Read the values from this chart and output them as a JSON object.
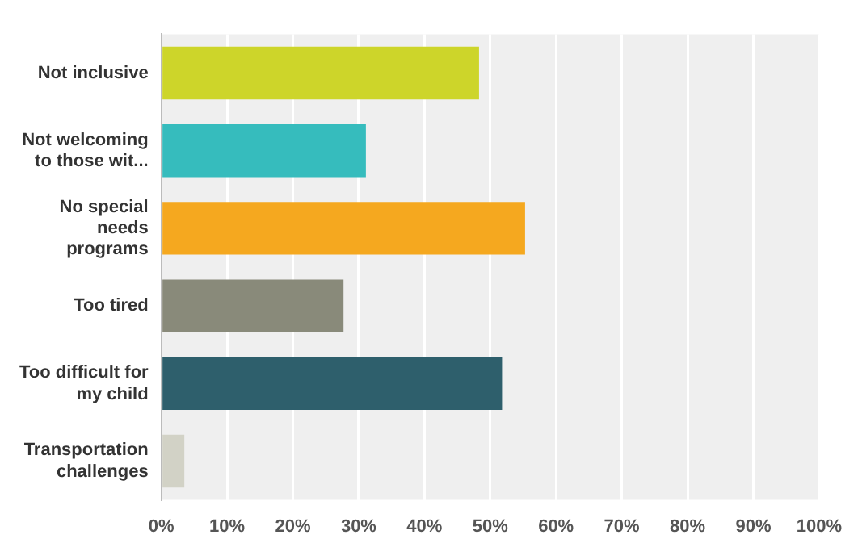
{
  "chart_data": {
    "type": "bar",
    "orientation": "horizontal",
    "categories": [
      "Not inclusive",
      "Not welcoming to those wit...",
      "No special needs programs",
      "Too tired",
      "Too difficult for my child",
      "Transportation challenges"
    ],
    "values": [
      48.3,
      31.1,
      55.3,
      27.7,
      51.8,
      3.5
    ],
    "colors": [
      "#cdd52a",
      "#36bcbd",
      "#f5a81f",
      "#898a7a",
      "#2e5f6c",
      "#d2d2c6"
    ],
    "xlim": [
      0,
      100
    ],
    "xticks": [
      {
        "value": 0,
        "label": "0%"
      },
      {
        "value": 10,
        "label": "10%"
      },
      {
        "value": 20,
        "label": "20%"
      },
      {
        "value": 30,
        "label": "30%"
      },
      {
        "value": 40,
        "label": "40%"
      },
      {
        "value": 50,
        "label": "50%"
      },
      {
        "value": 60,
        "label": "60%"
      },
      {
        "value": 70,
        "label": "70%"
      },
      {
        "value": 80,
        "label": "80%"
      },
      {
        "value": 90,
        "label": "90%"
      },
      {
        "value": 100,
        "label": "100%"
      }
    ],
    "grid": "x",
    "legend": false
  }
}
